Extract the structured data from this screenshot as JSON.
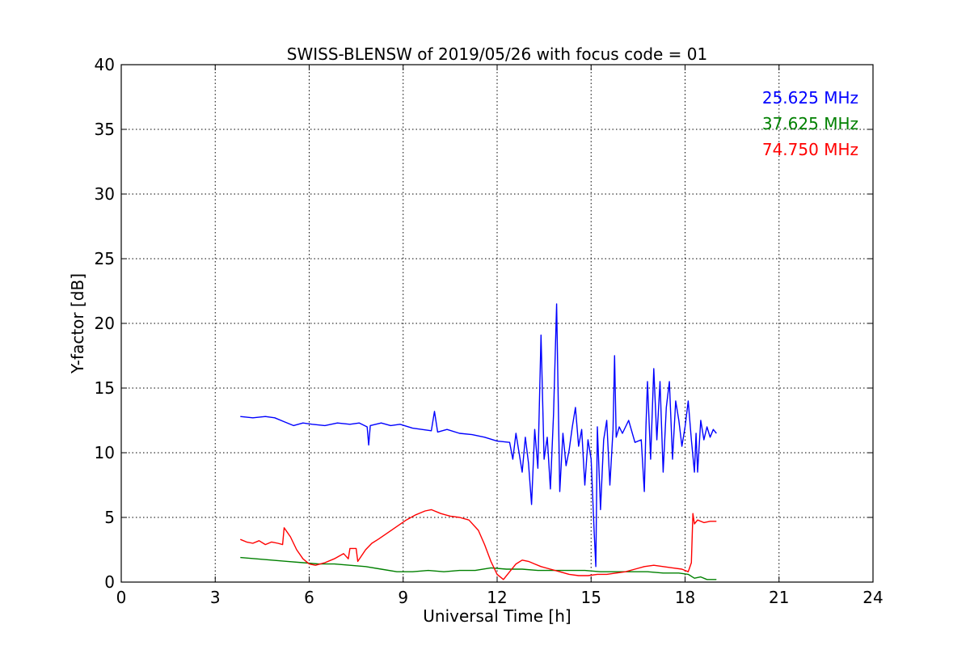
{
  "chart_data": {
    "type": "line",
    "title": "SWISS-BLENSW of 2019/05/26 with focus code = 01",
    "xlabel": "Universal Time [h]",
    "ylabel": "Y-factor [dB]",
    "xlim": [
      0,
      24
    ],
    "ylim": [
      0,
      40
    ],
    "xticks": [
      "0",
      "3",
      "6",
      "9",
      "12",
      "15",
      "18",
      "21",
      "24"
    ],
    "yticks": [
      "0",
      "5",
      "10",
      "15",
      "20",
      "25",
      "30",
      "35",
      "40"
    ],
    "grid": true,
    "legend_position": "top-right",
    "series": [
      {
        "name": "25.625 MHz",
        "color": "#0000ff",
        "x": [
          3.8,
          4.2,
          4.6,
          4.9,
          5.2,
          5.5,
          5.8,
          6.1,
          6.5,
          6.9,
          7.3,
          7.6,
          7.85,
          7.9,
          7.95,
          8.3,
          8.6,
          8.9,
          9.3,
          9.6,
          9.9,
          10.0,
          10.1,
          10.4,
          10.8,
          11.2,
          11.6,
          12.0,
          12.4,
          12.5,
          12.6,
          12.8,
          12.9,
          13.0,
          13.1,
          13.2,
          13.3,
          13.4,
          13.5,
          13.6,
          13.7,
          13.8,
          13.9,
          14.0,
          14.1,
          14.2,
          14.3,
          14.4,
          14.5,
          14.6,
          14.7,
          14.8,
          14.9,
          15.0,
          15.1,
          15.15,
          15.2,
          15.3,
          15.4,
          15.5,
          15.6,
          15.7,
          15.75,
          15.8,
          15.9,
          16.0,
          16.2,
          16.4,
          16.6,
          16.7,
          16.75,
          16.8,
          16.9,
          17.0,
          17.1,
          17.2,
          17.3,
          17.4,
          17.5,
          17.6,
          17.7,
          17.8,
          17.9,
          18.0,
          18.1,
          18.2,
          18.3,
          18.35,
          18.4,
          18.5,
          18.6,
          18.7,
          18.8,
          18.9,
          19.0
        ],
        "values": [
          12.8,
          12.7,
          12.8,
          12.7,
          12.4,
          12.1,
          12.3,
          12.2,
          12.1,
          12.3,
          12.2,
          12.3,
          12.0,
          10.6,
          12.1,
          12.3,
          12.1,
          12.2,
          11.9,
          11.8,
          11.7,
          13.2,
          11.6,
          11.8,
          11.5,
          11.4,
          11.2,
          10.9,
          10.8,
          9.5,
          11.5,
          8.5,
          11.2,
          9.2,
          6.0,
          11.8,
          8.8,
          19.1,
          9.5,
          11.2,
          7.2,
          13.0,
          21.5,
          7.0,
          11.5,
          9.0,
          10.2,
          12.0,
          13.5,
          10.5,
          11.8,
          7.5,
          11.0,
          9.5,
          3.8,
          1.2,
          12.0,
          5.6,
          11.0,
          12.5,
          7.5,
          11.8,
          17.5,
          11.2,
          12.0,
          11.5,
          12.5,
          10.8,
          11.0,
          7.0,
          12.0,
          15.5,
          9.5,
          16.5,
          11.0,
          15.5,
          8.5,
          13.5,
          15.5,
          9.5,
          14.0,
          12.5,
          10.5,
          12.0,
          14.0,
          11.0,
          8.5,
          11.5,
          8.5,
          12.5,
          11.0,
          12.0,
          11.2,
          11.8,
          11.5
        ]
      },
      {
        "name": "37.625 MHz",
        "color": "#008000",
        "x": [
          3.8,
          4.3,
          4.8,
          5.3,
          5.8,
          6.3,
          6.8,
          7.3,
          7.8,
          8.3,
          8.8,
          9.3,
          9.8,
          10.3,
          10.8,
          11.3,
          11.8,
          12.3,
          12.8,
          13.3,
          13.8,
          14.3,
          14.8,
          15.3,
          15.8,
          16.3,
          16.8,
          17.3,
          17.8,
          18.1,
          18.3,
          18.5,
          18.7,
          19.0
        ],
        "values": [
          1.9,
          1.8,
          1.7,
          1.6,
          1.5,
          1.4,
          1.4,
          1.3,
          1.2,
          1.0,
          0.8,
          0.8,
          0.9,
          0.8,
          0.9,
          0.9,
          1.1,
          1.0,
          1.0,
          0.9,
          0.9,
          0.9,
          0.9,
          0.8,
          0.8,
          0.8,
          0.8,
          0.7,
          0.7,
          0.6,
          0.3,
          0.4,
          0.2,
          0.2
        ]
      },
      {
        "name": "74.750 MHz",
        "color": "#ff0000",
        "x": [
          3.8,
          4.0,
          4.2,
          4.4,
          4.6,
          4.8,
          5.0,
          5.15,
          5.2,
          5.4,
          5.6,
          5.8,
          6.0,
          6.2,
          6.5,
          6.8,
          7.1,
          7.25,
          7.3,
          7.5,
          7.55,
          7.8,
          8.0,
          8.2,
          8.5,
          8.8,
          9.1,
          9.4,
          9.7,
          9.9,
          10.2,
          10.5,
          10.8,
          11.1,
          11.4,
          11.6,
          11.8,
          12.0,
          12.2,
          12.4,
          12.6,
          12.8,
          13.0,
          13.2,
          13.4,
          13.7,
          14.0,
          14.3,
          14.6,
          14.9,
          15.2,
          15.5,
          15.8,
          16.1,
          16.4,
          16.7,
          17.0,
          17.3,
          17.6,
          17.9,
          18.1,
          18.2,
          18.25,
          18.3,
          18.4,
          18.6,
          18.8,
          19.0
        ],
        "values": [
          3.3,
          3.1,
          3.0,
          3.2,
          2.9,
          3.1,
          3.0,
          2.9,
          4.2,
          3.5,
          2.5,
          1.8,
          1.4,
          1.3,
          1.5,
          1.8,
          2.2,
          1.8,
          2.6,
          2.6,
          1.6,
          2.5,
          3.0,
          3.3,
          3.8,
          4.3,
          4.8,
          5.2,
          5.5,
          5.6,
          5.3,
          5.1,
          5.0,
          4.8,
          4.0,
          2.9,
          1.6,
          0.6,
          0.2,
          0.8,
          1.4,
          1.7,
          1.6,
          1.4,
          1.2,
          1.0,
          0.8,
          0.6,
          0.5,
          0.5,
          0.6,
          0.6,
          0.7,
          0.8,
          1.0,
          1.2,
          1.3,
          1.2,
          1.1,
          1.0,
          0.8,
          1.5,
          5.3,
          4.5,
          4.8,
          4.6,
          4.7,
          4.7
        ]
      }
    ]
  }
}
